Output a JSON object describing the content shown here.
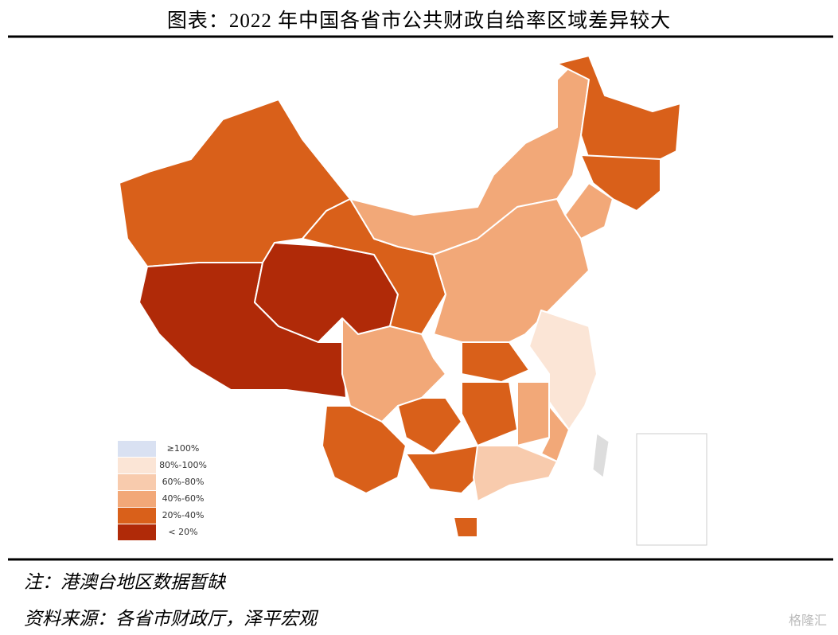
{
  "header": {
    "title": "图表：2022 年中国各省市公共财政自给率区域差异较大"
  },
  "legend": {
    "items": [
      {
        "label": "≥100%",
        "color": "#d9e1f2"
      },
      {
        "label": "80%-100%",
        "color": "#fbe5d6"
      },
      {
        "label": "60%-80%",
        "color": "#f8cbad"
      },
      {
        "label": "40%-60%",
        "color": "#f2a878"
      },
      {
        "label": "20%-40%",
        "color": "#d9601a"
      },
      {
        "label": "< 20%",
        "color": "#b02a08"
      }
    ]
  },
  "footer": {
    "note": "注：港澳台地区数据暂缺",
    "source": "资料来源：各省市财政厅，泽平宏观",
    "watermark": "格隆汇"
  }
}
